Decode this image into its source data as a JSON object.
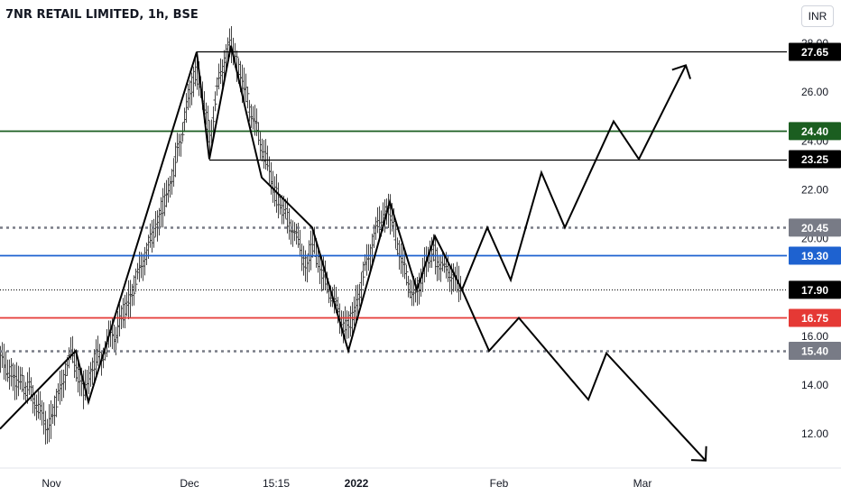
{
  "header": {
    "title": "7NR RETAIL LIMITED, 1h, BSE",
    "currency": "INR"
  },
  "chart_data": {
    "type": "candlestick",
    "symbol": "7NR RETAIL LIMITED",
    "interval": "1h",
    "exchange": "BSE",
    "ylim": [
      10.85,
      28.1
    ],
    "y_ticks": [
      "12.00",
      "14.00",
      "16.00",
      "20.00",
      "22.00",
      "24.00",
      "26.00",
      "28.00"
    ],
    "x_ticks": [
      "Nov",
      "Dec",
      "15:15",
      "2022",
      "Feb",
      "Mar"
    ],
    "horizontal_levels": [
      {
        "price": 27.65,
        "label": "27.65",
        "color": "#000000",
        "style": "solid",
        "from": "Dec 2"
      },
      {
        "price": 24.4,
        "label": "24.40",
        "color": "#1b5e20",
        "style": "solid",
        "from": "start"
      },
      {
        "price": 23.25,
        "label": "23.25",
        "color": "#000000",
        "style": "solid",
        "from": "Dec 3"
      },
      {
        "price": 20.45,
        "label": "20.45",
        "color": "#787b86",
        "style": "dotted",
        "from": "start"
      },
      {
        "price": 19.3,
        "label": "19.30",
        "color": "#1e62d0",
        "style": "solid",
        "from": "start"
      },
      {
        "price": 17.9,
        "label": "17.90",
        "color": "#000000",
        "style": "dotted-fine",
        "from": "start"
      },
      {
        "price": 16.75,
        "label": "16.75",
        "color": "#e53935",
        "style": "solid",
        "from": "start"
      },
      {
        "price": 15.4,
        "label": "15.40",
        "color": "#787b86",
        "style": "dotted",
        "from": "start"
      }
    ],
    "price_path": [
      [
        0,
        15.1
      ],
      [
        4,
        14.9
      ],
      [
        8,
        14.5
      ],
      [
        12,
        14.6
      ],
      [
        16,
        14.2
      ],
      [
        20,
        14.0
      ],
      [
        24,
        14.3
      ],
      [
        28,
        13.8
      ],
      [
        32,
        13.9
      ],
      [
        36,
        13.5
      ],
      [
        40,
        13.3
      ],
      [
        44,
        12.9
      ],
      [
        48,
        12.6
      ],
      [
        52,
        12.2
      ],
      [
        56,
        12.6
      ],
      [
        60,
        13.0
      ],
      [
        64,
        13.5
      ],
      [
        68,
        14.0
      ],
      [
        72,
        14.6
      ],
      [
        76,
        15.0
      ],
      [
        80,
        15.3
      ],
      [
        84,
        14.8
      ],
      [
        88,
        14.2
      ],
      [
        92,
        13.8
      ],
      [
        96,
        14.0
      ],
      [
        100,
        14.5
      ],
      [
        104,
        14.9
      ],
      [
        108,
        15.2
      ],
      [
        112,
        15.0
      ],
      [
        116,
        15.5
      ],
      [
        120,
        15.8
      ],
      [
        124,
        16.2
      ],
      [
        128,
        16.0
      ],
      [
        132,
        16.5
      ],
      [
        136,
        16.9
      ],
      [
        140,
        17.3
      ],
      [
        144,
        17.6
      ],
      [
        148,
        18.0
      ],
      [
        152,
        18.4
      ],
      [
        156,
        18.9
      ],
      [
        160,
        19.3
      ],
      [
        164,
        19.6
      ],
      [
        168,
        20.0
      ],
      [
        172,
        20.6
      ],
      [
        176,
        20.8
      ],
      [
        180,
        21.3
      ],
      [
        184,
        21.7
      ],
      [
        188,
        22.2
      ],
      [
        192,
        22.8
      ],
      [
        196,
        23.5
      ],
      [
        200,
        24.0
      ],
      [
        204,
        25.0
      ],
      [
        208,
        25.5
      ],
      [
        212,
        26.2
      ],
      [
        216,
        27.0
      ],
      [
        220,
        26.5
      ],
      [
        224,
        25.8
      ],
      [
        228,
        25.0
      ],
      [
        232,
        24.2
      ],
      [
        236,
        25.0
      ],
      [
        240,
        26.0
      ],
      [
        244,
        26.8
      ],
      [
        248,
        27.3
      ],
      [
        252,
        27.7
      ],
      [
        256,
        27.9
      ],
      [
        260,
        27.4
      ],
      [
        264,
        27.0
      ],
      [
        268,
        26.4
      ],
      [
        272,
        26.0
      ],
      [
        276,
        25.4
      ],
      [
        280,
        25.0
      ],
      [
        284,
        24.5
      ],
      [
        288,
        24.0
      ],
      [
        292,
        23.6
      ],
      [
        296,
        23.0
      ],
      [
        300,
        22.5
      ],
      [
        304,
        22.0
      ],
      [
        308,
        21.6
      ],
      [
        312,
        21.2
      ],
      [
        316,
        21.0
      ],
      [
        320,
        20.7
      ],
      [
        324,
        20.4
      ],
      [
        328,
        20.0
      ],
      [
        332,
        19.7
      ],
      [
        336,
        19.2
      ],
      [
        340,
        18.8
      ],
      [
        344,
        19.5
      ],
      [
        348,
        19.8
      ],
      [
        352,
        19.2
      ],
      [
        356,
        18.6
      ],
      [
        360,
        18.3
      ],
      [
        364,
        18.0
      ],
      [
        368,
        17.6
      ],
      [
        372,
        17.2
      ],
      [
        376,
        16.9
      ],
      [
        380,
        16.5
      ],
      [
        384,
        16.3
      ],
      [
        388,
        16.6
      ],
      [
        392,
        17.0
      ],
      [
        396,
        17.5
      ],
      [
        400,
        18.1
      ],
      [
        404,
        18.7
      ],
      [
        408,
        19.3
      ],
      [
        412,
        19.8
      ],
      [
        416,
        20.3
      ],
      [
        420,
        20.6
      ],
      [
        424,
        20.9
      ],
      [
        428,
        21.2
      ],
      [
        432,
        21.0
      ],
      [
        436,
        20.5
      ],
      [
        440,
        19.8
      ],
      [
        444,
        19.2
      ],
      [
        448,
        18.7
      ],
      [
        452,
        18.3
      ],
      [
        456,
        17.8
      ],
      [
        460,
        17.6
      ],
      [
        464,
        18.1
      ],
      [
        468,
        18.6
      ],
      [
        472,
        19.0
      ],
      [
        476,
        19.3
      ],
      [
        480,
        19.5
      ],
      [
        484,
        19.1
      ],
      [
        488,
        18.9
      ],
      [
        492,
        18.7
      ],
      [
        496,
        18.8
      ],
      [
        500,
        18.5
      ],
      [
        504,
        18.3
      ],
      [
        508,
        18.1
      ],
      [
        512,
        17.9
      ]
    ],
    "projection_paths": [
      [
        [
          0,
          12.2
        ],
        [
          84,
          15.4
        ],
        [
          98,
          13.3
        ],
        [
          218,
          27.65
        ],
        [
          232,
          23.25
        ],
        [
          256,
          27.9
        ],
        [
          274,
          25.0
        ]
      ],
      [
        [
          274,
          25.0
        ],
        [
          290,
          22.5
        ],
        [
          346,
          20.45
        ],
        [
          386,
          15.4
        ],
        [
          432,
          21.5
        ],
        [
          462,
          17.9
        ],
        [
          482,
          20.1
        ],
        [
          512,
          17.9
        ]
      ],
      [
        [
          512,
          17.9
        ],
        [
          540,
          20.45
        ],
        [
          566,
          18.3
        ],
        [
          600,
          22.7
        ],
        [
          626,
          20.45
        ],
        [
          680,
          24.8
        ],
        [
          708,
          23.25
        ],
        [
          760,
          27.1
        ]
      ],
      [
        [
          512,
          17.9
        ],
        [
          542,
          15.4
        ],
        [
          575,
          16.75
        ],
        [
          652,
          13.4
        ],
        [
          672,
          15.3
        ],
        [
          782,
          10.9
        ]
      ]
    ]
  }
}
